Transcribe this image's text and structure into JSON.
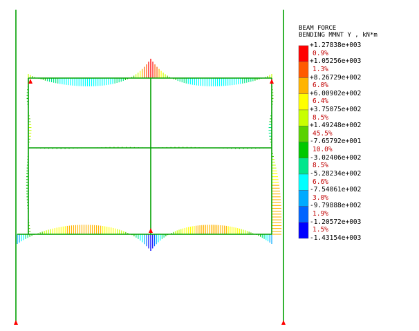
{
  "legend": {
    "title_line1": "BEAM FORCE",
    "title_line2": "BENDING MMNT Y , kN*m",
    "values": [
      "+1.27838e+003",
      "+1.05256e+003",
      "+8.26729e+002",
      "+6.00902e+002",
      "+3.75075e+002",
      "+1.49248e+002",
      "-7.65792e+001",
      "-3.02406e+002",
      "-5.28234e+002",
      "-7.54061e+002",
      "-9.79888e+002",
      "-1.20572e+003",
      "-1.43154e+003"
    ],
    "percents": [
      "0.9%",
      "1.3%",
      "6.0%",
      "6.4%",
      "8.5%",
      "45.5%",
      "10.0%",
      "8.5%",
      "6.6%",
      "3.0%",
      "1.9%",
      "1.5%"
    ],
    "colors": [
      "#ff0000",
      "#ff5a00",
      "#ffb400",
      "#ffff00",
      "#c8ff00",
      "#5ad200",
      "#00c800",
      "#00e68c",
      "#00ffff",
      "#00aaff",
      "#0064ff",
      "#0000ff"
    ]
  }
}
